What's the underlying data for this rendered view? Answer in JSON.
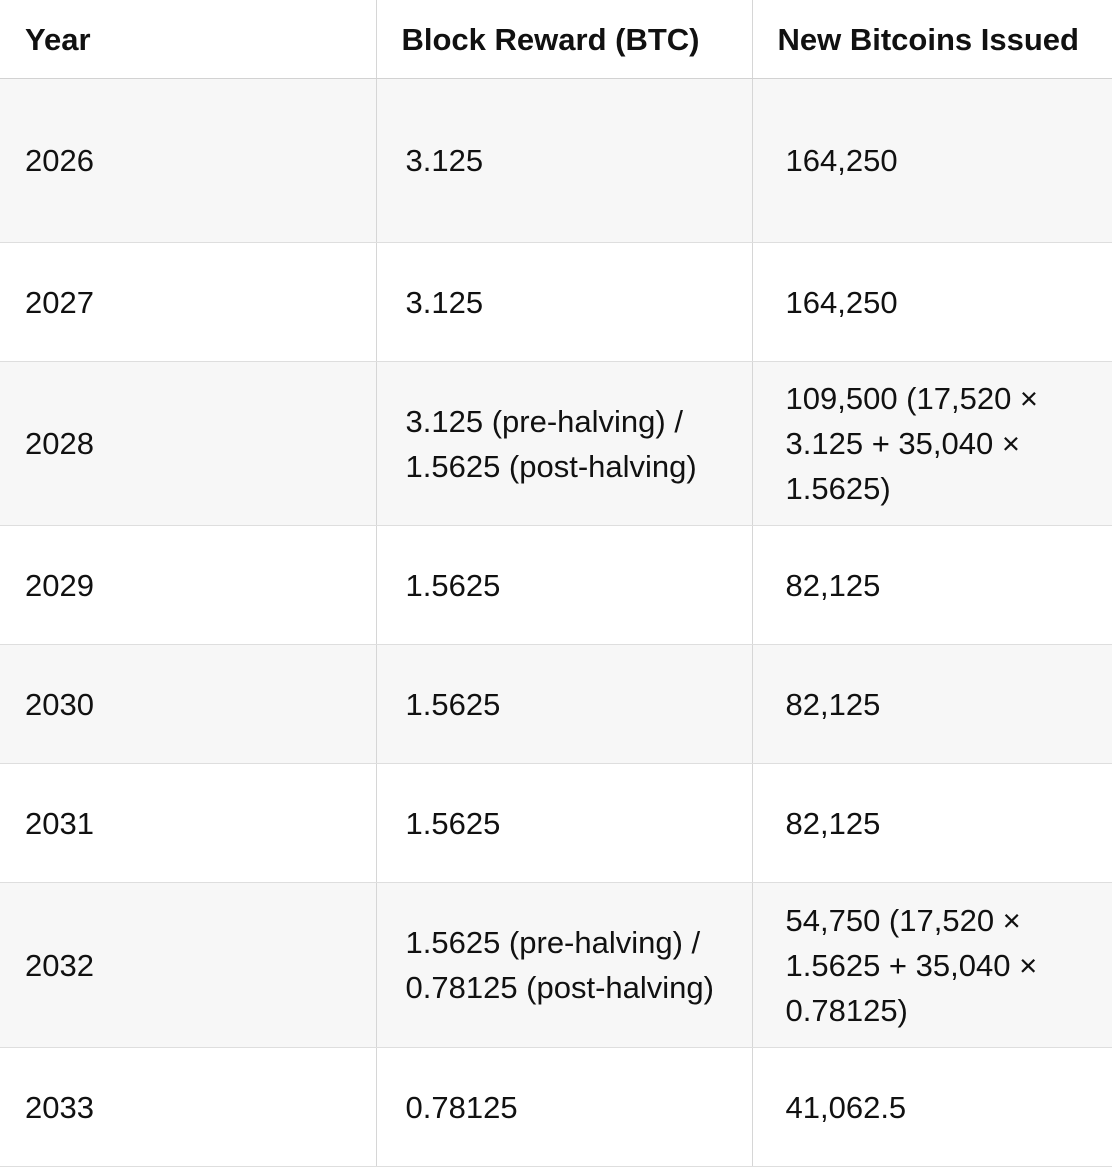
{
  "table": {
    "headers": [
      "Year",
      "Block Reward (BTC)",
      "New Bitcoins Issued"
    ],
    "rows": [
      [
        "2026",
        "3.125",
        "164,250"
      ],
      [
        "2027",
        "3.125",
        "164,250"
      ],
      [
        "2028",
        "3.125 (pre-halving) / 1.5625 (post-halving)",
        "109,500 (17,520 × 3.125 + 35,040 × 1.5625)"
      ],
      [
        "2029",
        "1.5625",
        "82,125"
      ],
      [
        "2030",
        "1.5625",
        "82,125"
      ],
      [
        "2031",
        "1.5625",
        "82,125"
      ],
      [
        "2032",
        "1.5625 (pre-halving) / 0.78125 (post-halving)",
        "54,750 (17,520 × 1.5625 + 35,040 × 0.78125)"
      ],
      [
        "2033",
        "0.78125",
        "41,062.5"
      ]
    ]
  }
}
